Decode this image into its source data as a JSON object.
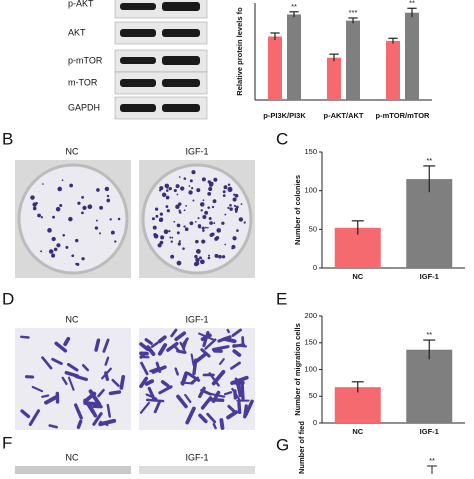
{
  "figure": {
    "blot_labels": [
      "p-AKT",
      "AKT",
      "p-mTOR",
      "m-TOR",
      "GAPDH"
    ],
    "panel_b": {
      "letter": "B",
      "left": "NC",
      "right": "IGF-1"
    },
    "panel_d": {
      "letter": "D",
      "left": "NC",
      "right": "IGF-1"
    },
    "panel_f": {
      "letter": "F",
      "left": "NC",
      "right": "IGF-1"
    },
    "panel_g": {
      "letter": "G",
      "y_label": "Number of fied",
      "annotation": "**"
    }
  },
  "chart_data": [
    {
      "type": "bar",
      "y_label": "Relative protein levels fo",
      "categories": [
        "p-PI3K/PI3K",
        "p-AKT/AKT",
        "p-mTOR/mTOR"
      ],
      "series": [
        {
          "color": "#f46a6e",
          "values": [
            0.72,
            0.48,
            0.67
          ],
          "errors": [
            0.04,
            0.04,
            0.03
          ]
        },
        {
          "color": "#7f7f7f",
          "values": [
            0.97,
            0.9,
            0.99
          ],
          "errors": [
            0.03,
            0.03,
            0.05
          ]
        }
      ],
      "annotations": [
        {
          "category": "p-PI3K/PI3K",
          "text": "**"
        },
        {
          "category": "p-AKT/AKT",
          "text": "***"
        },
        {
          "category": "p-mTOR/mTOR",
          "text": "**"
        }
      ],
      "ylim": [
        0,
        1.1
      ]
    },
    {
      "type": "bar",
      "letter": "C",
      "y_label": "Number of colonies",
      "categories": [
        "NC",
        "IGF-1"
      ],
      "series": [
        {
          "colors": [
            "#f46a6e",
            "#7f7f7f"
          ],
          "values": [
            52,
            115
          ],
          "errors": [
            9,
            17
          ]
        }
      ],
      "annotations": [
        {
          "category": "IGF-1",
          "text": "**"
        }
      ],
      "ylim": [
        0,
        150
      ],
      "yticks": [
        0,
        50,
        100,
        150
      ]
    },
    {
      "type": "bar",
      "letter": "E",
      "y_label": "Number of migration cells",
      "categories": [
        "NC",
        "IGF-1"
      ],
      "series": [
        {
          "colors": [
            "#f46a6e",
            "#7f7f7f"
          ],
          "values": [
            67,
            137
          ],
          "errors": [
            10,
            18
          ]
        }
      ],
      "annotations": [
        {
          "category": "IGF-1",
          "text": "**"
        }
      ],
      "ylim": [
        0,
        200
      ],
      "yticks": [
        0,
        50,
        100,
        150,
        200
      ]
    }
  ]
}
